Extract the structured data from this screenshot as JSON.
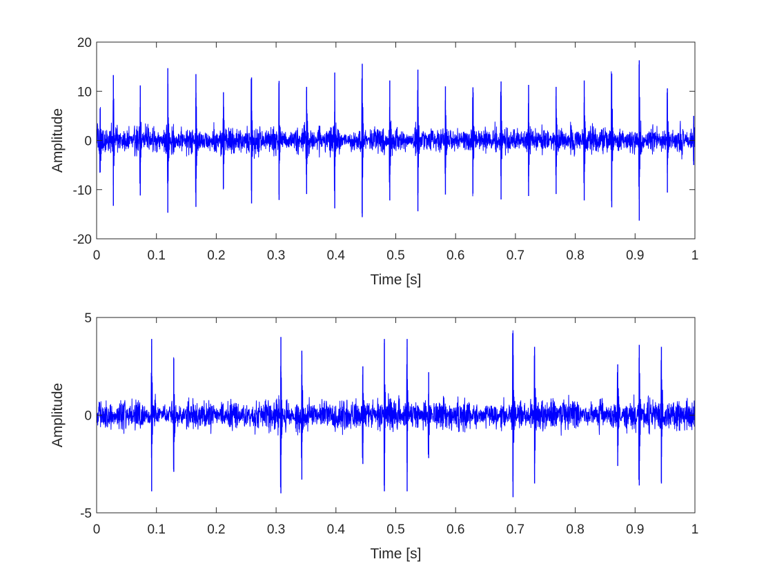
{
  "chart_data": [
    {
      "type": "line",
      "xlabel": "Time [s]",
      "ylabel": "Amplitude",
      "xlim": [
        0,
        1
      ],
      "ylim": [
        -20,
        20
      ],
      "xticks": [
        0,
        0.1,
        0.2,
        0.3,
        0.4,
        0.5,
        0.6,
        0.7,
        0.8,
        0.9,
        1
      ],
      "xtick_labels": [
        "0",
        "0.1",
        "0.2",
        "0.3",
        "0.4",
        "0.5",
        "0.6",
        "0.7",
        "0.8",
        "0.9",
        "1"
      ],
      "yticks": [
        -20,
        -10,
        0,
        10,
        20
      ],
      "ytick_labels": [
        "-20",
        "-10",
        "0",
        "10",
        "20"
      ],
      "grid": false,
      "line_color": "#0000ff",
      "noise_amplitude": 3.5,
      "impulses": [
        {
          "t": 0.006,
          "amp": 6.5
        },
        {
          "t": 0.028,
          "amp": 13.3
        },
        {
          "t": 0.073,
          "amp": 11.2
        },
        {
          "t": 0.119,
          "amp": 14.7
        },
        {
          "t": 0.166,
          "amp": 13.5
        },
        {
          "t": 0.212,
          "amp": 9.8
        },
        {
          "t": 0.259,
          "amp": 12.8
        },
        {
          "t": 0.305,
          "amp": 12.1
        },
        {
          "t": 0.351,
          "amp": 10.9
        },
        {
          "t": 0.398,
          "amp": 13.8
        },
        {
          "t": 0.444,
          "amp": 15.6
        },
        {
          "t": 0.49,
          "amp": 12.2
        },
        {
          "t": 0.537,
          "amp": 14.4
        },
        {
          "t": 0.583,
          "amp": 11.0
        },
        {
          "t": 0.629,
          "amp": 10.8
        },
        {
          "t": 0.676,
          "amp": 12.0
        },
        {
          "t": 0.722,
          "amp": 11.3
        },
        {
          "t": 0.768,
          "amp": 10.9
        },
        {
          "t": 0.815,
          "amp": 12.2
        },
        {
          "t": 0.861,
          "amp": 13.6
        },
        {
          "t": 0.907,
          "amp": 16.3
        },
        {
          "t": 0.954,
          "amp": 10.6
        },
        {
          "t": 0.998,
          "amp": 5.0
        }
      ]
    },
    {
      "type": "line",
      "xlabel": "Time [s]",
      "ylabel": "Amplitude",
      "xlim": [
        0,
        1
      ],
      "ylim": [
        -5,
        5
      ],
      "xticks": [
        0,
        0.1,
        0.2,
        0.3,
        0.4,
        0.5,
        0.6,
        0.7,
        0.8,
        0.9,
        1
      ],
      "xtick_labels": [
        "0",
        "0.1",
        "0.2",
        "0.3",
        "0.4",
        "0.5",
        "0.6",
        "0.7",
        "0.8",
        "0.9",
        "1"
      ],
      "yticks": [
        -5,
        0,
        5
      ],
      "ytick_labels": [
        "-5",
        "0",
        "5"
      ],
      "grid": false,
      "line_color": "#0000ff",
      "noise_amplitude": 1.0,
      "impulses": [
        {
          "t": 0.092,
          "amp": 3.9
        },
        {
          "t": 0.129,
          "amp": 2.9
        },
        {
          "t": 0.308,
          "amp": 4.0
        },
        {
          "t": 0.343,
          "amp": 3.3
        },
        {
          "t": 0.445,
          "amp": 2.5
        },
        {
          "t": 0.481,
          "amp": 3.9
        },
        {
          "t": 0.519,
          "amp": 3.9
        },
        {
          "t": 0.555,
          "amp": 2.2
        },
        {
          "t": 0.696,
          "amp": 4.2
        },
        {
          "t": 0.732,
          "amp": 3.5
        },
        {
          "t": 0.871,
          "amp": 2.6
        },
        {
          "t": 0.907,
          "amp": 3.6
        },
        {
          "t": 0.944,
          "amp": 3.5
        }
      ]
    }
  ]
}
